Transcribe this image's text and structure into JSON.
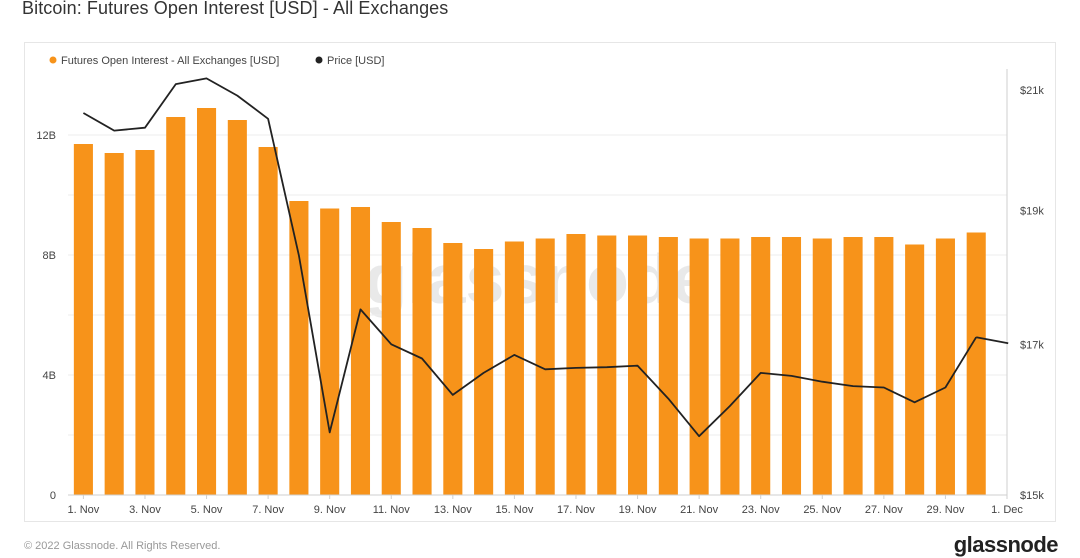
{
  "header": {
    "title": "Bitcoin: Futures Open Interest [USD] - All Exchanges"
  },
  "footer": {
    "copyright": "© 2022 Glassnode. All Rights Reserved.",
    "brand": "glassnode"
  },
  "watermark": "glassnode",
  "colors": {
    "bar": "#f7931a",
    "line": "#222222",
    "grid": "#eeeeee"
  },
  "chart_data": {
    "type": "bar",
    "title": "Bitcoin: Futures Open Interest [USD] - All Exchanges",
    "legend": {
      "placement": "top-left",
      "entries": [
        "Futures Open Interest - All Exchanges [USD]",
        "Price [USD]"
      ]
    },
    "categories": [
      "1. Nov",
      "2. Nov",
      "3. Nov",
      "4. Nov",
      "5. Nov",
      "6. Nov",
      "7. Nov",
      "8. Nov",
      "9. Nov",
      "10. Nov",
      "11. Nov",
      "12. Nov",
      "13. Nov",
      "14. Nov",
      "15. Nov",
      "16. Nov",
      "17. Nov",
      "18. Nov",
      "19. Nov",
      "20. Nov",
      "21. Nov",
      "22. Nov",
      "23. Nov",
      "24. Nov",
      "25. Nov",
      "26. Nov",
      "27. Nov",
      "28. Nov",
      "29. Nov",
      "30. Nov"
    ],
    "x_tick_labels": [
      "1. Nov",
      "3. Nov",
      "5. Nov",
      "7. Nov",
      "9. Nov",
      "11. Nov",
      "13. Nov",
      "15. Nov",
      "17. Nov",
      "19. Nov",
      "21. Nov",
      "23. Nov",
      "25. Nov",
      "27. Nov",
      "29. Nov",
      "1. Dec"
    ],
    "series": [
      {
        "name": "Futures Open Interest - All Exchanges [USD]",
        "type": "bar",
        "axis": "left",
        "values": [
          11.7,
          11.4,
          11.5,
          12.6,
          12.9,
          12.5,
          11.6,
          9.8,
          9.55,
          9.6,
          9.1,
          8.9,
          8.4,
          8.2,
          8.45,
          8.55,
          8.7,
          8.65,
          8.65,
          8.6,
          8.55,
          8.55,
          8.6,
          8.6,
          8.55,
          8.6,
          8.6,
          8.35,
          8.55,
          8.75
        ]
      },
      {
        "name": "Price [USD]",
        "type": "line",
        "axis": "right",
        "values": [
          20600,
          20300,
          20350,
          21100,
          21200,
          20900,
          20500,
          18300,
          15800,
          17500,
          17000,
          16800,
          16300,
          16600,
          16850,
          16650,
          16670,
          16680,
          16700,
          16250,
          15750,
          16150,
          16600,
          16560,
          16480,
          16420,
          16400,
          16200,
          16400,
          17100
        ]
      }
    ],
    "y_left": {
      "ticks": [
        "0",
        "4B",
        "8B",
        "12B"
      ],
      "min": 0,
      "max": 14.2
    },
    "y_right": {
      "ticks": [
        "$15k",
        "$17k",
        "$19k",
        "$21k"
      ],
      "min": 15000,
      "max": 21366,
      "scale": "log"
    },
    "grid": true
  }
}
